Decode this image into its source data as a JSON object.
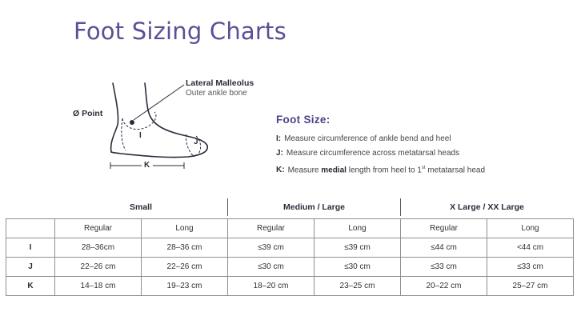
{
  "title": "Foot Sizing Charts",
  "diagram": {
    "lateral_title": "Lateral Malleolus",
    "lateral_sub": "Outer ankle bone",
    "point_label": "Ø Point",
    "i_label": "I",
    "j_label": "J",
    "k_label": "K"
  },
  "foot_size": {
    "heading": "Foot Size:",
    "items": [
      {
        "key": "I:",
        "pre": "Measure circumference of ankle bend and heel",
        "bold": "",
        "post": "",
        "sup": "",
        "tail": ""
      },
      {
        "key": "J:",
        "pre": "Measure circumference across metatarsal heads",
        "bold": "",
        "post": "",
        "sup": "",
        "tail": ""
      },
      {
        "key": "K:",
        "pre": "Measure ",
        "bold": "medial",
        "post": " length from heel to 1",
        "sup": "st",
        "tail": " metatarsal head"
      }
    ]
  },
  "table": {
    "groups": [
      "Small",
      "Medium / Large",
      "X Large / XX Large"
    ],
    "columns": [
      "Regular",
      "Long",
      "Regular",
      "Long",
      "Regular",
      "Long"
    ],
    "rows": [
      {
        "key": "I",
        "cells": [
          "28–36cm",
          "28–36 cm",
          "≤39 cm",
          "≤39 cm",
          "≤44 cm",
          "<44 cm"
        ]
      },
      {
        "key": "J",
        "cells": [
          "22–26 cm",
          "22–26 cm",
          "≤30 cm",
          "≤30 cm",
          "≤33 cm",
          "≤33 cm"
        ]
      },
      {
        "key": "K",
        "cells": [
          "14–18 cm",
          "19–23 cm",
          "18–20 cm",
          "23–25 cm",
          "20–22 cm",
          "25–27 cm"
        ]
      }
    ]
  }
}
